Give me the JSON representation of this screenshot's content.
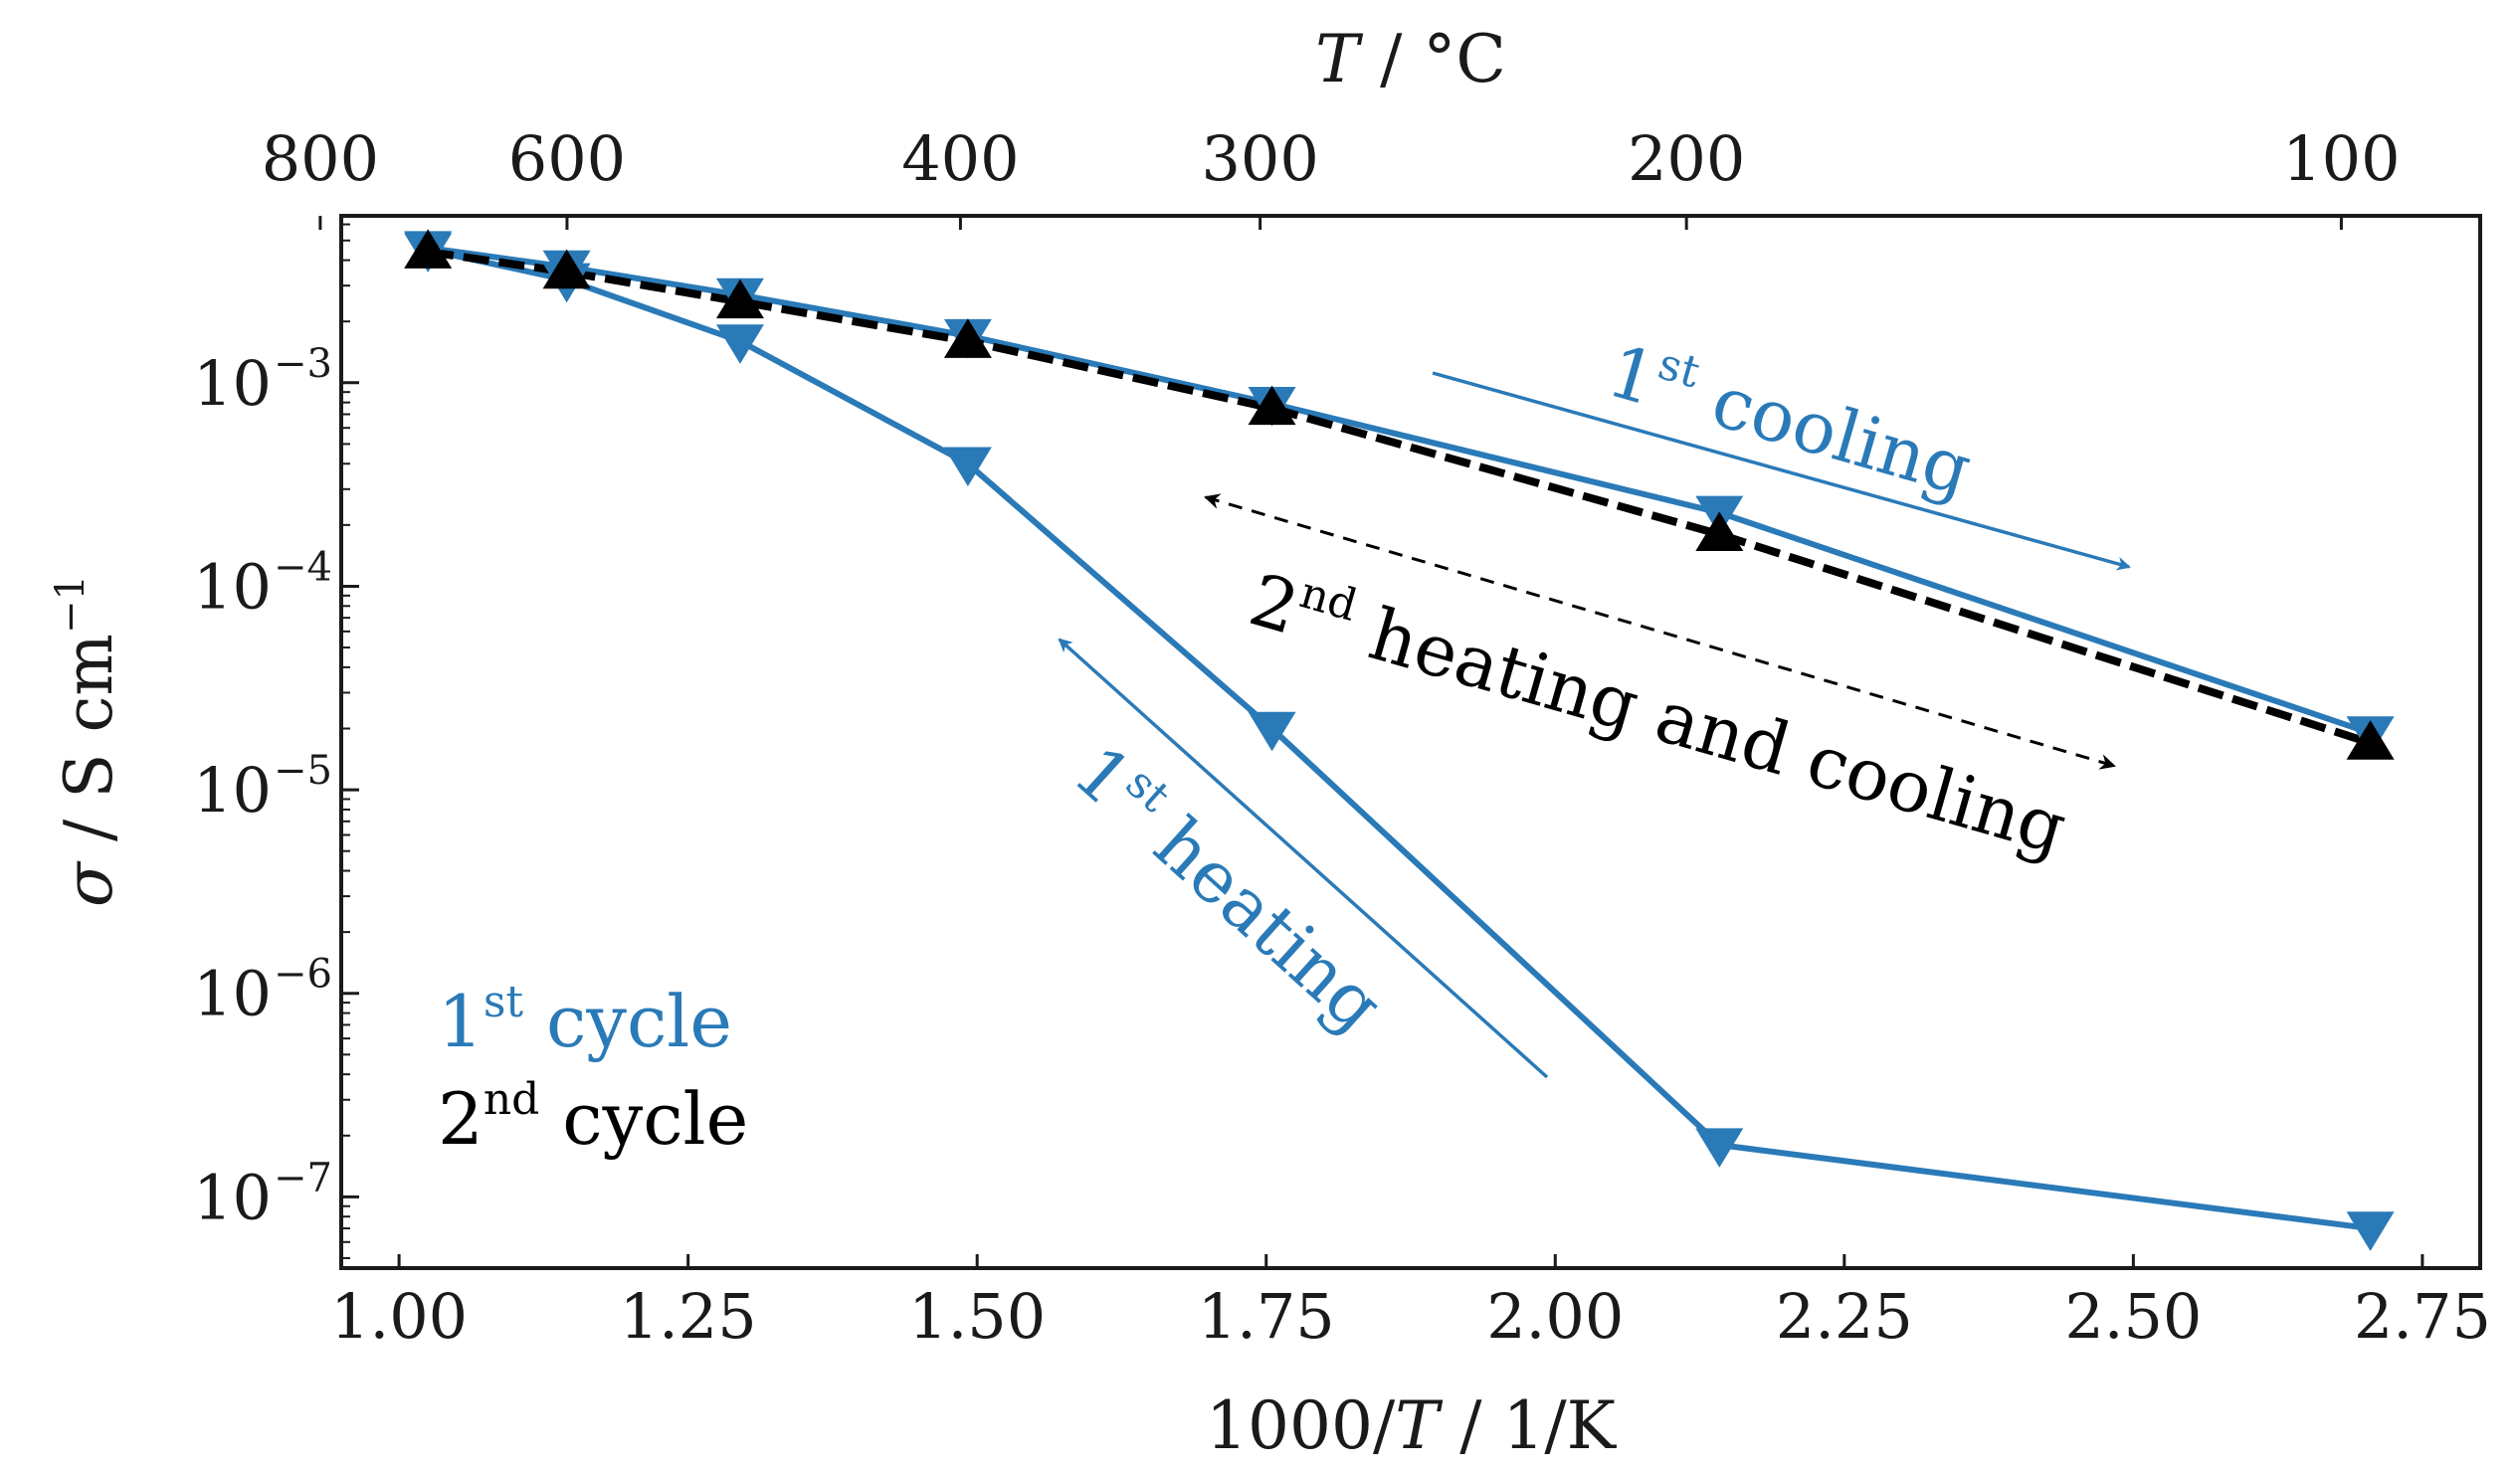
{
  "chart_data": {
    "type": "line",
    "xlabel_prefix": "1000/",
    "xlabel_var": "T",
    "xlabel_suffix": " / 1/K",
    "ylabel_prefix": "σ",
    "ylabel_suffix": " / S cm",
    "ylabel_exp": "−1",
    "top_xlabel_var": "T",
    "top_xlabel_suffix": " / °C",
    "xlim": [
      0.95,
      2.8
    ],
    "ylim_log10": [
      -7.35,
      -2.18
    ],
    "yscale": "log",
    "x_ticks": [
      1.0,
      1.25,
      1.5,
      1.75,
      2.0,
      2.25,
      2.5,
      2.75
    ],
    "x_tick_labels": [
      "1.00",
      "1.25",
      "1.50",
      "1.75",
      "2.00",
      "2.25",
      "2.50",
      "2.75"
    ],
    "y_ticks_log10": [
      -7,
      -6,
      -5,
      -4,
      -3
    ],
    "y_tick_labels": [
      "10",
      "10",
      "10",
      "10",
      "10"
    ],
    "y_tick_exponents": [
      "−7",
      "−6",
      "−5",
      "−4",
      "−3"
    ],
    "top_ticks_celsius": [
      800,
      600,
      400,
      300,
      200,
      100
    ],
    "top_tick_labels": [
      "800",
      "600",
      "400",
      "300",
      "200",
      "100"
    ],
    "series": [
      {
        "name": "1st heating",
        "color": "#2a7ab8",
        "marker": "triangle-down",
        "line": "solid",
        "x": [
          1.025,
          1.145,
          1.295,
          1.492,
          1.755,
          2.142,
          2.705
        ],
        "y": [
          0.0045,
          0.0032,
          0.0016,
          0.0004,
          2e-05,
          1.8e-07,
          7e-08
        ]
      },
      {
        "name": "1st cooling",
        "color": "#2a7ab8",
        "marker": "triangle-down",
        "line": "solid",
        "x": [
          1.025,
          1.145,
          1.295,
          1.492,
          1.755,
          2.142,
          2.705
        ],
        "y": [
          0.0046,
          0.0037,
          0.0027,
          0.0017,
          0.00079,
          0.00023,
          1.9e-05
        ]
      },
      {
        "name": "2nd heating and cooling",
        "color": "#000000",
        "marker": "triangle-up",
        "line": "dashed",
        "x": [
          1.025,
          1.145,
          1.295,
          1.492,
          1.755,
          2.142,
          2.705
        ],
        "y": [
          0.0044,
          0.0035,
          0.0025,
          0.0016,
          0.00075,
          0.00018,
          1.7e-05
        ]
      }
    ],
    "annotations": {
      "cooling1": {
        "n": "1",
        "sup": "st",
        "text": " cooling",
        "color": "#2a7ab8"
      },
      "heating2": {
        "n": "2",
        "sup": "nd",
        "text": " heating and cooling",
        "color": "#000000"
      },
      "heating1": {
        "n": "1",
        "sup": "st",
        "text": " heating",
        "color": "#2a7ab8"
      }
    },
    "legend": {
      "cycle1": {
        "n": "1",
        "sup": "st",
        "text": " cycle",
        "color": "#2a7ab8"
      },
      "cycle2": {
        "n": "2",
        "sup": "nd",
        "text": " cycle",
        "color": "#000000"
      }
    },
    "grid": false,
    "legend_position": "bottom-left"
  }
}
